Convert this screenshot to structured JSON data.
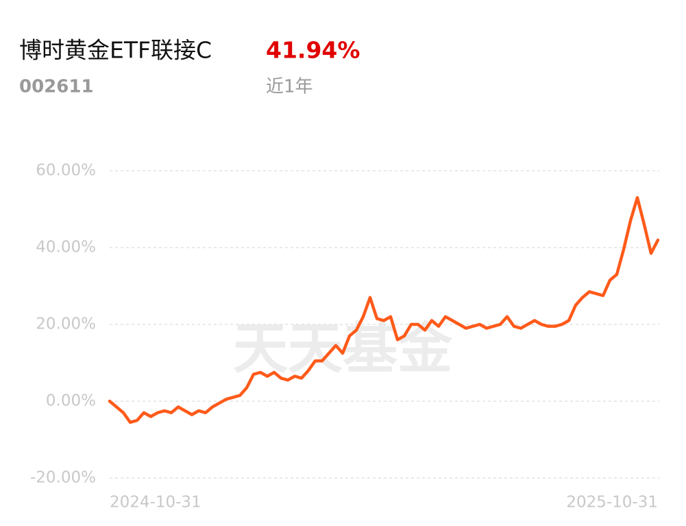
{
  "chart_data": {
    "type": "line",
    "title": "博时黄金ETF联接C",
    "return_label": "41.94%",
    "code": "002611",
    "period": "近1年",
    "watermark": "天天基金",
    "categories": [
      "2024-10-31",
      null,
      null,
      null,
      null,
      null,
      null,
      null,
      null,
      null,
      null,
      null,
      null,
      null,
      null,
      null,
      null,
      null,
      null,
      null,
      null,
      null,
      null,
      null,
      null,
      null,
      null,
      null,
      null,
      null,
      null,
      null,
      null,
      null,
      null,
      null,
      null,
      null,
      null,
      null,
      null,
      null,
      null,
      null,
      null,
      null,
      null,
      null,
      null,
      null,
      null,
      null,
      null,
      null,
      null,
      null,
      null,
      null,
      null,
      null,
      null,
      null,
      null,
      null,
      null,
      null,
      null,
      null,
      null,
      null,
      null,
      null,
      null,
      null,
      null,
      null,
      null,
      null,
      null,
      null,
      "2025-10-31"
    ],
    "series": [
      {
        "color": "#ff5a1a",
        "values": [
          0,
          -1.5,
          -3,
          -5.5,
          -5,
          -3,
          -4,
          -3,
          -2.5,
          -3,
          -1.5,
          -2.5,
          -3.5,
          -2.5,
          -3,
          -1.5,
          -0.5,
          0.5,
          1,
          1.5,
          3.5,
          7,
          7.5,
          6.5,
          7.5,
          6,
          5.5,
          6.5,
          6,
          8,
          10.5,
          10.5,
          12.5,
          14.5,
          12.5,
          17,
          18.5,
          22,
          27,
          21.5,
          21,
          22,
          16,
          17,
          20,
          20,
          18.5,
          21,
          19.5,
          22,
          21,
          20,
          19,
          19.5,
          20,
          19,
          19.5,
          20,
          22,
          19.5,
          19,
          20,
          21,
          20,
          19.5,
          19.5,
          20,
          21,
          25,
          27,
          28.5,
          28,
          27.5,
          31.5,
          33,
          39.5,
          47,
          53,
          46,
          38.5,
          41.94
        ]
      }
    ],
    "ylim": [
      -20,
      60
    ],
    "yticks": [
      {
        "value": -20,
        "label": "-20.00%"
      },
      {
        "value": 0,
        "label": "0.00%"
      },
      {
        "value": 20,
        "label": "20.00%"
      },
      {
        "value": 40,
        "label": "40.00%"
      },
      {
        "value": 60,
        "label": "60.00%"
      }
    ],
    "grid": true
  }
}
